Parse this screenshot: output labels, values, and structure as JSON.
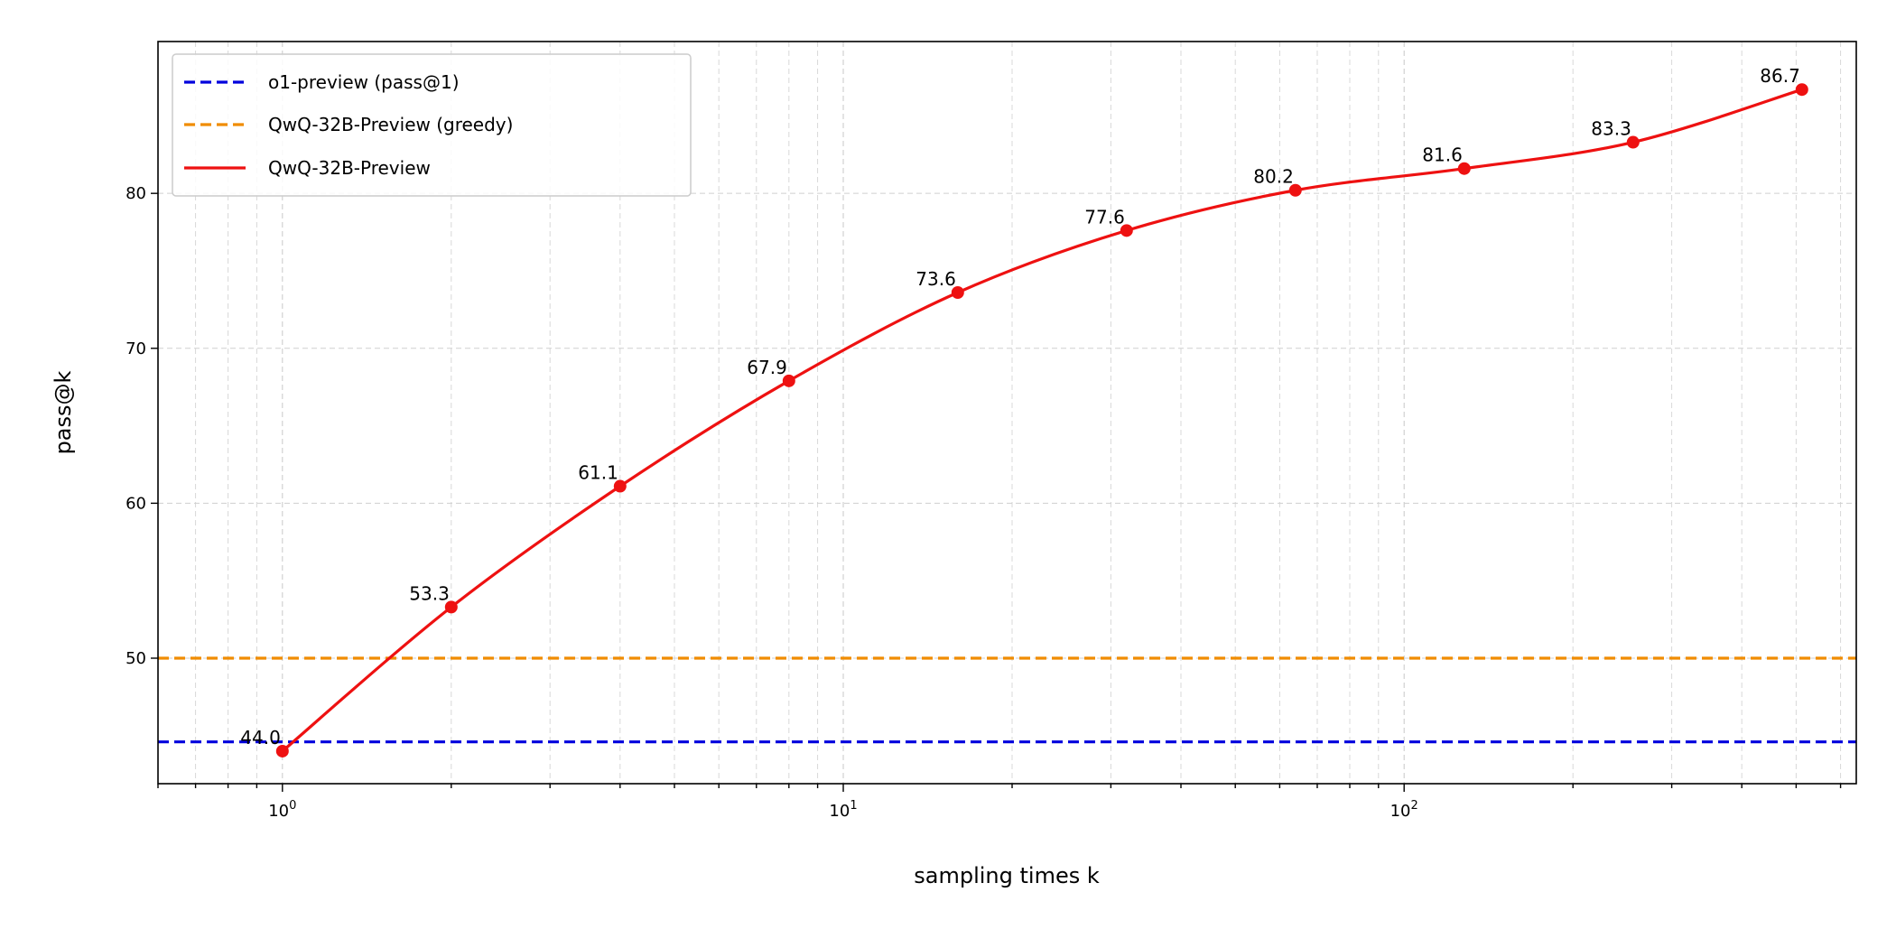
{
  "chart_data": {
    "type": "line",
    "xlabel": "sampling times k",
    "ylabel": "pass@k",
    "xscale": "log",
    "xlim": [
      0.6,
      640
    ],
    "ylim": [
      41.9,
      89.8
    ],
    "grid": true,
    "legend_position": "top-left",
    "x_ticks": [
      1,
      10,
      100
    ],
    "x_tick_labels": [
      {
        "base": "10",
        "exp": "0"
      },
      {
        "base": "10",
        "exp": "1"
      },
      {
        "base": "10",
        "exp": "2"
      }
    ],
    "y_ticks": [
      50,
      60,
      70,
      80
    ],
    "y_tick_labels": [
      "50",
      "60",
      "70",
      "80"
    ],
    "series": [
      {
        "name": "o1-preview (pass@1)",
        "kind": "hline",
        "style": "dashed",
        "color": "#0000dd",
        "value": 44.6
      },
      {
        "name": "QwQ-32B-Preview (greedy)",
        "kind": "hline",
        "style": "dashed",
        "color": "#f08c00",
        "value": 50.0
      },
      {
        "name": "QwQ-32B-Preview",
        "kind": "line",
        "style": "solid",
        "color": "#ee1111",
        "x": [
          1,
          2,
          4,
          8,
          16,
          32,
          64,
          128,
          256,
          512
        ],
        "y": [
          44.0,
          53.3,
          61.1,
          67.9,
          73.6,
          77.6,
          80.2,
          81.6,
          83.3,
          86.7
        ],
        "labels": [
          "44.0",
          "53.3",
          "61.1",
          "67.9",
          "73.6",
          "77.6",
          "80.2",
          "81.6",
          "83.3",
          "86.7"
        ]
      }
    ]
  }
}
